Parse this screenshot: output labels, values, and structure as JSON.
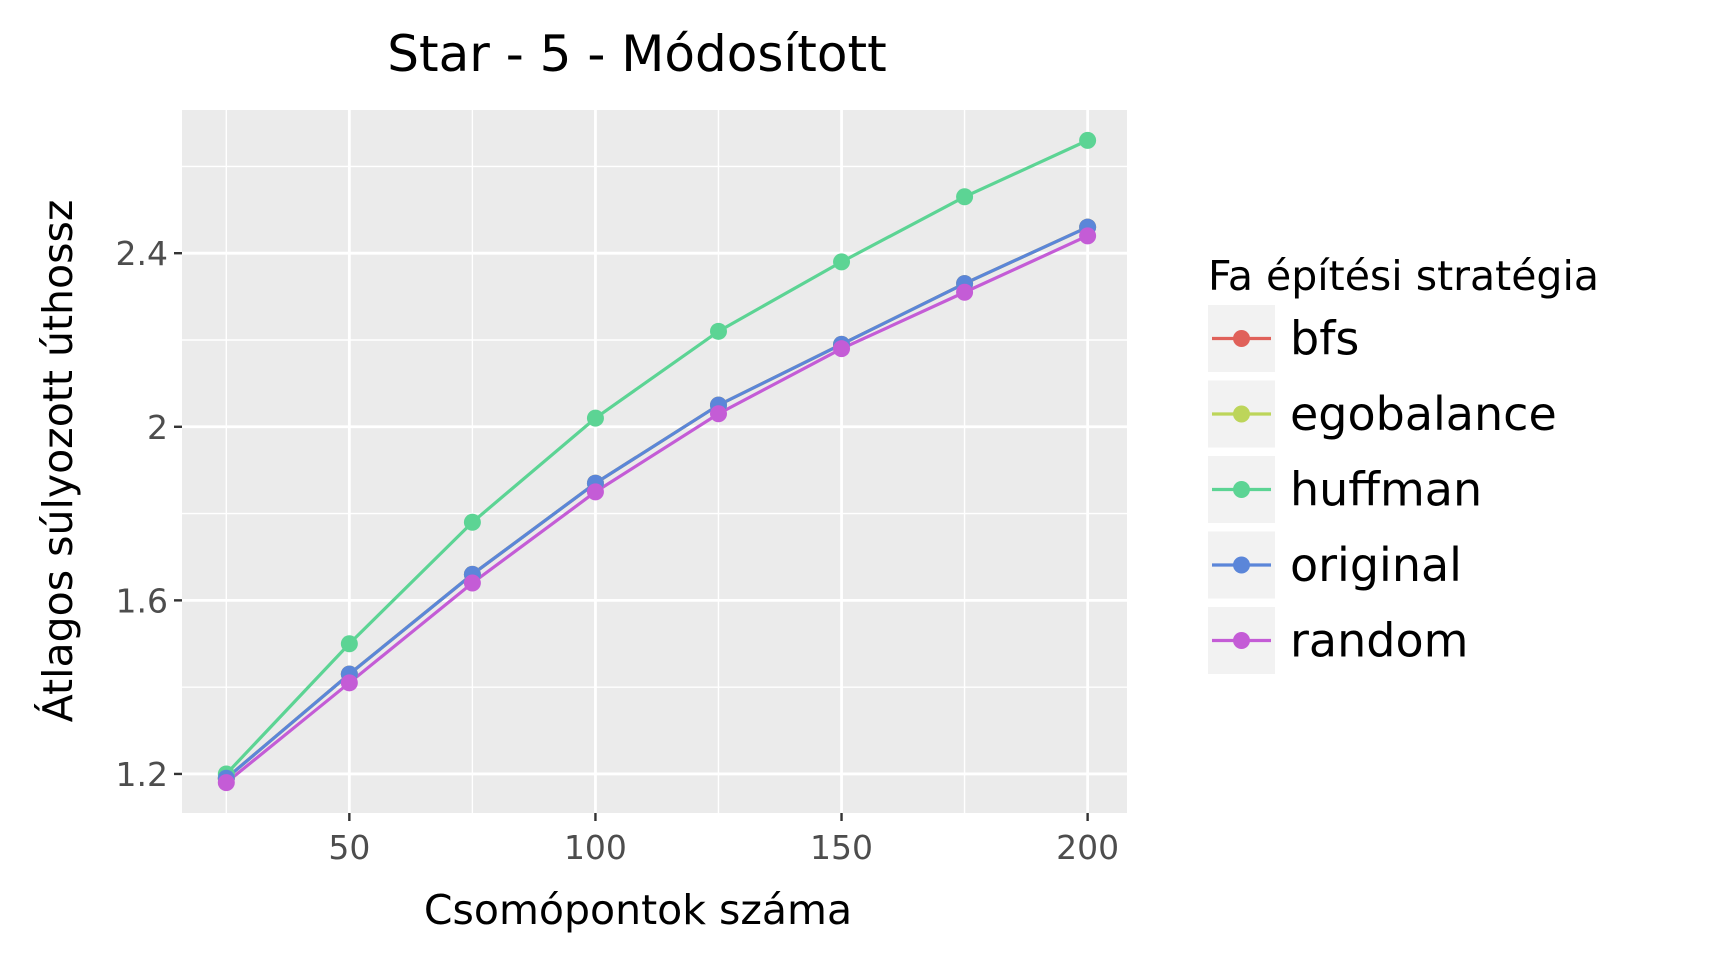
{
  "chart_data": {
    "type": "line",
    "title": "Star - 5 - Módosított",
    "xlabel": "Csomópontok száma",
    "ylabel": "Átlagos súlyozott úthossz",
    "x": [
      25,
      50,
      75,
      100,
      125,
      150,
      175,
      200
    ],
    "xlim": [
      16,
      208
    ],
    "ylim": [
      1.11,
      2.73
    ],
    "xticks": [
      50,
      100,
      150,
      200
    ],
    "xtick_labels": [
      "50",
      "100",
      "150",
      "200"
    ],
    "yticks": [
      1.2,
      1.6,
      2.0,
      2.4
    ],
    "ytick_labels": [
      "1.2",
      "1.6",
      "2",
      "2.4"
    ],
    "grid": true,
    "legend": {
      "title": "Fa építési stratégia",
      "position": "right"
    },
    "series": [
      {
        "name": "bfs",
        "color": "#E0615A",
        "values": [
          1.19,
          1.43,
          1.66,
          1.87,
          2.05,
          2.19,
          2.33,
          2.46
        ]
      },
      {
        "name": "egobalance",
        "color": "#BDD55A",
        "values": [
          1.19,
          1.43,
          1.66,
          1.87,
          2.05,
          2.19,
          2.33,
          2.46
        ]
      },
      {
        "name": "huffman",
        "color": "#5CD494",
        "values": [
          1.2,
          1.5,
          1.78,
          2.02,
          2.22,
          2.38,
          2.53,
          2.66
        ]
      },
      {
        "name": "original",
        "color": "#5B86D9",
        "values": [
          1.19,
          1.43,
          1.66,
          1.87,
          2.05,
          2.19,
          2.33,
          2.46
        ]
      },
      {
        "name": "random",
        "color": "#C45CD6",
        "values": [
          1.18,
          1.41,
          1.64,
          1.85,
          2.03,
          2.18,
          2.31,
          2.44
        ]
      }
    ]
  }
}
